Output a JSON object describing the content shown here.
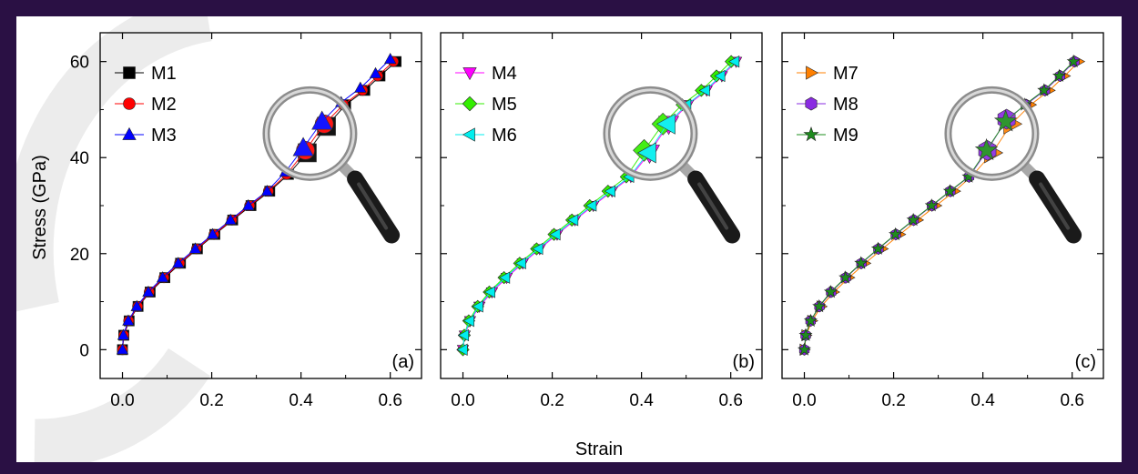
{
  "figure": {
    "ylabel": "Stress (GPa)",
    "xlabel": "Strain",
    "background": "#ffffff",
    "frame_color": "#2a1044"
  },
  "chart_data": [
    {
      "type": "scatter",
      "panel_label": "(a)",
      "xlim": [
        -0.05,
        0.67
      ],
      "ylim": [
        -6,
        66
      ],
      "xticks": [
        0.0,
        0.2,
        0.4,
        0.6
      ],
      "xtick_labels": [
        "0.0",
        "0.2",
        "0.4",
        "0.6"
      ],
      "yticks": [
        0,
        20,
        40,
        60
      ],
      "ytick_labels": [
        "0",
        "20",
        "40",
        "60"
      ],
      "grid": false,
      "legend_position": "top-left",
      "magnifier": {
        "center": [
          0.42,
          45
        ]
      },
      "series": [
        {
          "name": "M1",
          "marker": "square",
          "color": "#000000",
          "x": [
            0.0,
            0.003,
            0.015,
            0.035,
            0.062,
            0.095,
            0.13,
            0.168,
            0.207,
            0.247,
            0.288,
            0.33,
            0.372,
            0.414,
            0.457,
            0.5,
            0.543,
            0.577,
            0.613
          ],
          "y": [
            0,
            3,
            6,
            9,
            12,
            15,
            18,
            21,
            24,
            27,
            30,
            33,
            36.5,
            41,
            46.5,
            51,
            54,
            57,
            60
          ]
        },
        {
          "name": "M2",
          "marker": "circle",
          "color": "#ff0000",
          "x": [
            0.0,
            0.003,
            0.014,
            0.034,
            0.06,
            0.093,
            0.128,
            0.166,
            0.205,
            0.245,
            0.285,
            0.327,
            0.368,
            0.41,
            0.452,
            0.495,
            0.538,
            0.572,
            0.607
          ],
          "y": [
            0,
            3,
            6,
            9,
            12,
            15,
            18,
            21,
            24,
            27,
            30,
            33,
            36.5,
            41.5,
            47,
            51,
            54,
            57,
            60
          ]
        },
        {
          "name": "M3",
          "marker": "triangle-up",
          "color": "#0000ff",
          "x": [
            0.0,
            0.002,
            0.013,
            0.032,
            0.058,
            0.09,
            0.125,
            0.163,
            0.202,
            0.242,
            0.282,
            0.324,
            0.365,
            0.405,
            0.447,
            0.49,
            0.533,
            0.567,
            0.6
          ],
          "y": [
            0,
            3,
            6,
            9,
            12,
            15,
            18,
            21,
            24,
            27,
            30,
            33,
            37,
            42,
            47.5,
            51.5,
            54.5,
            57.5,
            60.5
          ]
        }
      ]
    },
    {
      "type": "scatter",
      "panel_label": "(b)",
      "xlim": [
        -0.05,
        0.67
      ],
      "ylim": [
        -6,
        66
      ],
      "xticks": [
        0.0,
        0.2,
        0.4,
        0.6
      ],
      "xtick_labels": [
        "0.0",
        "0.2",
        "0.4",
        "0.6"
      ],
      "yticks": [
        0,
        20,
        40,
        60
      ],
      "ytick_labels": [
        "",
        "",
        "",
        ""
      ],
      "grid": false,
      "legend_position": "top-left",
      "magnifier": {
        "center": [
          0.42,
          45
        ]
      },
      "series": [
        {
          "name": "M4",
          "marker": "triangle-down",
          "color": "#ff00ff",
          "x": [
            0.0,
            0.004,
            0.016,
            0.037,
            0.065,
            0.098,
            0.134,
            0.172,
            0.211,
            0.251,
            0.292,
            0.334,
            0.376,
            0.418,
            0.461,
            0.504,
            0.546,
            0.58,
            0.612
          ],
          "y": [
            0,
            3,
            6,
            9,
            12,
            15,
            18,
            21,
            24,
            27,
            30,
            33,
            36,
            41,
            47,
            51,
            54,
            57,
            60
          ]
        },
        {
          "name": "M5",
          "marker": "diamond",
          "color": "#33ee00",
          "x": [
            0.0,
            0.003,
            0.013,
            0.033,
            0.059,
            0.092,
            0.127,
            0.165,
            0.204,
            0.244,
            0.284,
            0.325,
            0.366,
            0.406,
            0.448,
            0.491,
            0.534,
            0.568,
            0.601
          ],
          "y": [
            0,
            3,
            6,
            9,
            12,
            15,
            18,
            21,
            24,
            27,
            30,
            33,
            36,
            41.5,
            47,
            51,
            54,
            57,
            60
          ]
        },
        {
          "name": "M6",
          "marker": "triangle-left",
          "color": "#00eeee",
          "x": [
            0.0,
            0.003,
            0.015,
            0.035,
            0.062,
            0.095,
            0.131,
            0.169,
            0.208,
            0.248,
            0.289,
            0.331,
            0.373,
            0.415,
            0.458,
            0.501,
            0.543,
            0.577,
            0.609
          ],
          "y": [
            0,
            3,
            6,
            9,
            12,
            15,
            18,
            21,
            24,
            27,
            30,
            33,
            36,
            41,
            47,
            51,
            54,
            57,
            60
          ]
        }
      ]
    },
    {
      "type": "scatter",
      "panel_label": "(c)",
      "xlim": [
        -0.05,
        0.67
      ],
      "ylim": [
        -6,
        66
      ],
      "xticks": [
        0.0,
        0.2,
        0.4,
        0.6
      ],
      "xtick_labels": [
        "0.0",
        "0.2",
        "0.4",
        "0.6"
      ],
      "yticks": [
        0,
        20,
        40,
        60
      ],
      "ytick_labels": [
        "",
        "",
        "",
        ""
      ],
      "grid": false,
      "legend_position": "top-left",
      "magnifier": {
        "center": [
          0.42,
          45
        ]
      },
      "series": [
        {
          "name": "M7",
          "marker": "triangle-right",
          "color": "#ff8000",
          "x": [
            0.0,
            0.004,
            0.017,
            0.038,
            0.066,
            0.1,
            0.136,
            0.175,
            0.214,
            0.254,
            0.295,
            0.337,
            0.379,
            0.421,
            0.464,
            0.507,
            0.549,
            0.583,
            0.615
          ],
          "y": [
            0,
            3,
            6,
            9,
            12,
            15,
            18,
            21,
            24,
            27,
            30,
            33,
            36.5,
            41,
            47,
            51,
            54,
            57,
            60
          ]
        },
        {
          "name": "M8",
          "marker": "hexagon",
          "color": "#8a2be2",
          "x": [
            0.0,
            0.003,
            0.014,
            0.034,
            0.06,
            0.093,
            0.128,
            0.166,
            0.205,
            0.245,
            0.286,
            0.327,
            0.369,
            0.41,
            0.453,
            0.496,
            0.539,
            0.573,
            0.605
          ],
          "y": [
            0,
            3,
            6,
            9,
            12,
            15,
            18,
            21,
            24,
            27,
            30,
            33,
            36,
            41.5,
            48,
            51,
            54,
            57,
            60
          ]
        },
        {
          "name": "M9",
          "marker": "star",
          "color": "#1e8c1e",
          "x": [
            0.0,
            0.003,
            0.014,
            0.033,
            0.059,
            0.092,
            0.127,
            0.165,
            0.204,
            0.244,
            0.285,
            0.326,
            0.368,
            0.408,
            0.451,
            0.494,
            0.537,
            0.571,
            0.603
          ],
          "y": [
            0,
            3,
            6,
            9,
            12,
            15,
            18,
            21,
            24,
            27,
            30,
            33,
            36,
            41.5,
            47.5,
            51,
            54,
            57,
            60
          ]
        }
      ]
    }
  ]
}
